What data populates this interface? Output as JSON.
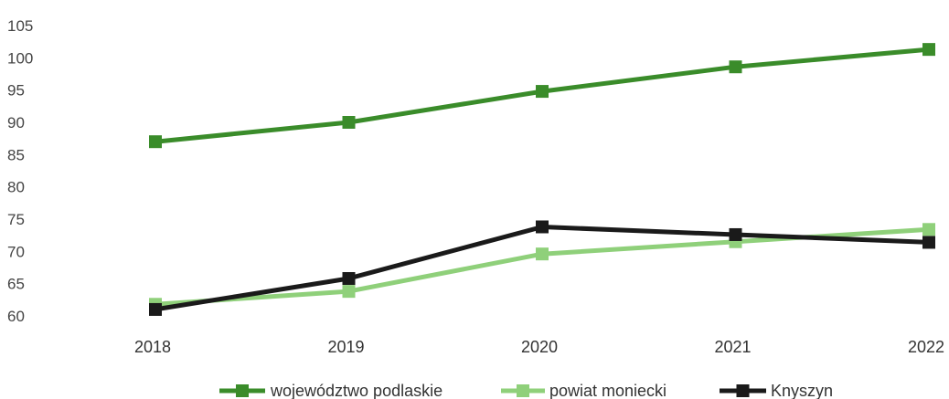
{
  "chart_data": {
    "type": "line",
    "title": "",
    "xlabel": "",
    "ylabel": "",
    "x": [
      "2018",
      "2019",
      "2020",
      "2021",
      "2022"
    ],
    "y_ticks": [
      "60",
      "65",
      "70",
      "75",
      "80",
      "85",
      "90",
      "95",
      "100",
      "105"
    ],
    "ylim": [
      60,
      105
    ],
    "grid": false,
    "legend_position": "bottom",
    "series": [
      {
        "name": "województwo podlaskie",
        "color": "#3a8c2a",
        "values": [
          87.0,
          90.0,
          94.8,
          98.6,
          101.3
        ]
      },
      {
        "name": "powiat moniecki",
        "color": "#8fd07a",
        "values": [
          61.8,
          63.8,
          69.6,
          71.5,
          73.4
        ]
      },
      {
        "name": "Knyszyn",
        "color": "#1a1a1a",
        "values": [
          61.0,
          65.8,
          73.8,
          72.6,
          71.4
        ]
      }
    ]
  }
}
